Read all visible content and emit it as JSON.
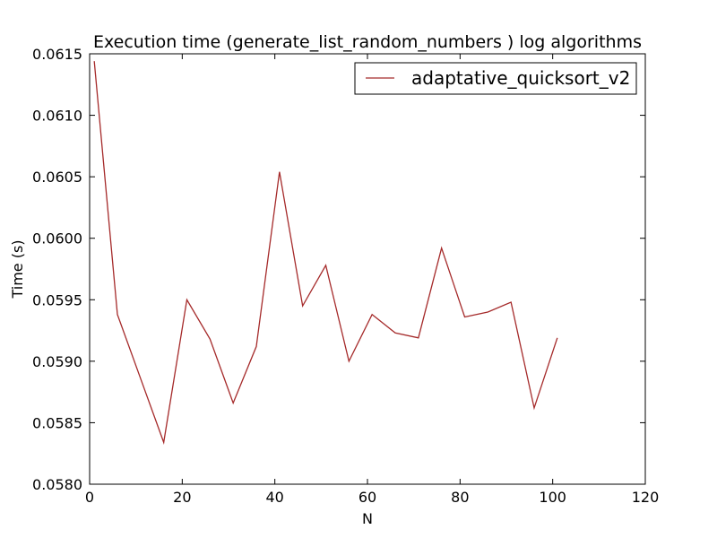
{
  "chart_data": {
    "type": "line",
    "title": "Execution time (generate_list_random_numbers ) log algorithms",
    "xlabel": "N",
    "ylabel": "Time (s)",
    "xlim": [
      0,
      120
    ],
    "ylim": [
      0.058,
      0.0615
    ],
    "xticks": [
      0,
      20,
      40,
      60,
      80,
      100,
      120
    ],
    "yticks": [
      0.058,
      0.0585,
      0.059,
      0.0595,
      0.06,
      0.0605,
      0.061,
      0.0615
    ],
    "xtick_labels": [
      "0",
      "20",
      "40",
      "60",
      "80",
      "100",
      "120"
    ],
    "ytick_labels": [
      "0.0580",
      "0.0585",
      "0.0590",
      "0.0595",
      "0.0600",
      "0.0605",
      "0.0610",
      "0.0615"
    ],
    "grid": false,
    "legend_position": "top-right",
    "series": [
      {
        "name": "adaptative_quicksort_v2",
        "color": "#a52a2a",
        "x": [
          1,
          6,
          11,
          16,
          21,
          26,
          31,
          36,
          41,
          46,
          51,
          56,
          61,
          66,
          71,
          76,
          81,
          86,
          91,
          96,
          101
        ],
        "y": [
          0.06144,
          0.05938,
          0.05886,
          0.05834,
          0.0595,
          0.05918,
          0.05866,
          0.05912,
          0.06054,
          0.05945,
          0.05978,
          0.059,
          0.05938,
          0.05923,
          0.05919,
          0.05992,
          0.05936,
          0.0594,
          0.05948,
          0.05862,
          0.05919
        ]
      }
    ]
  }
}
